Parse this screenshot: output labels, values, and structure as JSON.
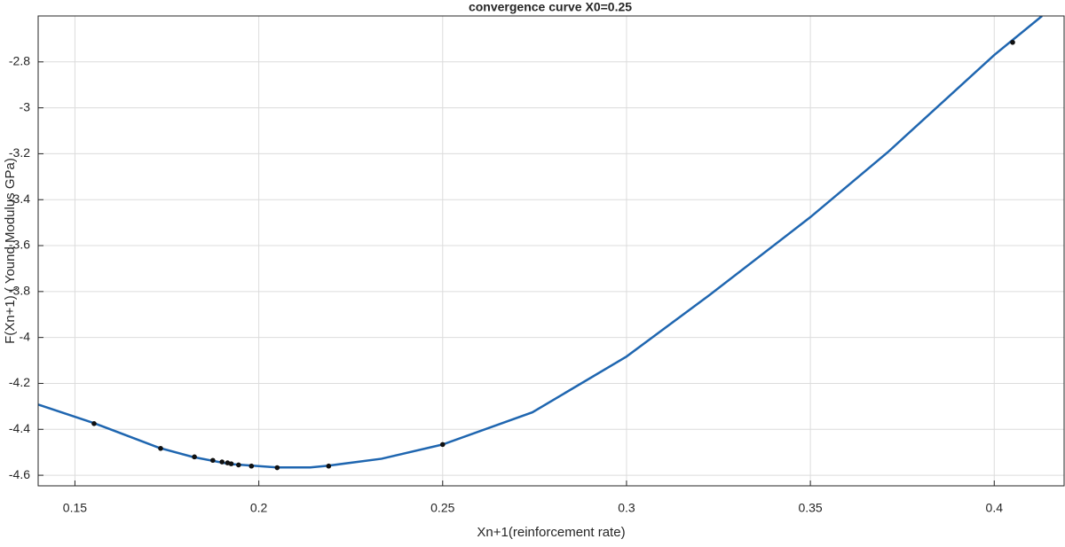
{
  "chart_data": {
    "type": "line",
    "title": "convergence curve X0=0.25",
    "x_label": "Xn+1(reinforcement rate)",
    "y_label": "F(Xn+1) ( Yound Modulus GPa)",
    "xlim": [
      0.14,
      0.419
    ],
    "ylim": [
      -4.646,
      -2.6
    ],
    "xticks": [
      0.15,
      0.2,
      0.25,
      0.3,
      0.35,
      0.4
    ],
    "yticks": [
      -4.6,
      -4.4,
      -4.2,
      -4,
      -3.8,
      -3.6,
      -3.4,
      -3.2,
      -3,
      -2.8
    ],
    "grid": true,
    "series": [
      {
        "color": "#1f66b0",
        "mode": "line",
        "x": [
          0.14,
          0.1552,
          0.173,
          0.182,
          0.192,
          0.205,
          0.214,
          0.219,
          0.2334,
          0.25,
          0.2744,
          0.3,
          0.3225,
          0.35,
          0.371,
          0.4,
          0.413
        ],
        "values": [
          -4.292,
          -4.373,
          -4.481,
          -4.52,
          -4.551,
          -4.566,
          -4.566,
          -4.558,
          -4.528,
          -4.466,
          -4.326,
          -4.083,
          -3.816,
          -3.476,
          -3.194,
          -2.77,
          -2.6
        ]
      },
      {
        "color": "#111111",
        "mode": "markers",
        "x": [
          0.25,
          0.405,
          0.219,
          0.205,
          0.1552,
          0.1733,
          0.1825,
          0.1875,
          0.19,
          0.1915,
          0.1925,
          0.1945,
          0.198
        ],
        "values": [
          -4.466,
          -2.715,
          -4.56,
          -4.567,
          -4.375,
          -4.483,
          -4.52,
          -4.535,
          -4.542,
          -4.546,
          -4.55,
          -4.555,
          -4.56
        ]
      }
    ]
  }
}
